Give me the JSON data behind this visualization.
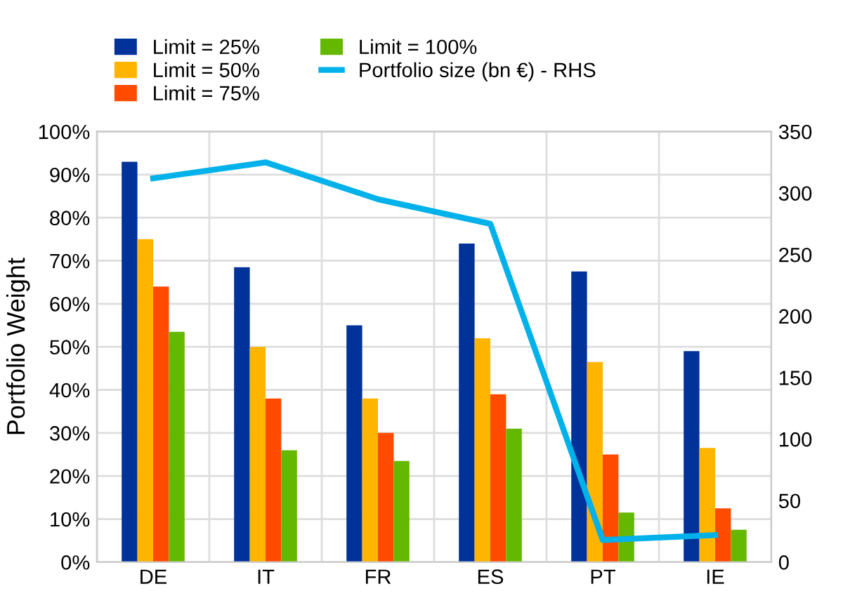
{
  "chart_data": {
    "type": "bar",
    "ylabel": "Portfolio Weight",
    "categories": [
      "DE",
      "IT",
      "FR",
      "ES",
      "PT",
      "IE"
    ],
    "series": [
      {
        "name": "Limit = 25%",
        "color": "#003299",
        "values": [
          93,
          68.5,
          55,
          74,
          67.5,
          49
        ]
      },
      {
        "name": "Limit = 50%",
        "color": "#ffb400",
        "values": [
          75,
          50,
          38,
          52,
          46.5,
          26.5
        ]
      },
      {
        "name": "Limit = 75%",
        "color": "#ff4b00",
        "values": [
          64,
          38,
          30,
          39,
          25,
          12.5
        ]
      },
      {
        "name": "Limit = 100%",
        "color": "#65b800",
        "values": [
          53.5,
          26,
          23.5,
          31,
          11.5,
          7.5
        ]
      },
      {
        "name": "Portfolio size (bn €) - RHS",
        "color": "#00b1ea",
        "type": "line",
        "axis": "y2",
        "values": [
          312,
          325,
          295,
          275,
          18,
          22
        ]
      }
    ],
    "ylim": [
      0,
      100
    ],
    "yticks": [
      {
        "value": 0,
        "label": "0%"
      },
      {
        "value": 10,
        "label": "10%"
      },
      {
        "value": 20,
        "label": "20%"
      },
      {
        "value": 30,
        "label": "30%"
      },
      {
        "value": 40,
        "label": "40%"
      },
      {
        "value": 50,
        "label": "50%"
      },
      {
        "value": 60,
        "label": "60%"
      },
      {
        "value": 70,
        "label": "70%"
      },
      {
        "value": 80,
        "label": "80%"
      },
      {
        "value": 90,
        "label": "90%"
      },
      {
        "value": 100,
        "label": "100%"
      }
    ],
    "y2lim": [
      0,
      350
    ],
    "y2ticks": [
      0,
      50,
      100,
      150,
      200,
      250,
      300,
      350
    ],
    "grid": true,
    "legend": "top",
    "marker": "none",
    "line_style": "solid"
  }
}
